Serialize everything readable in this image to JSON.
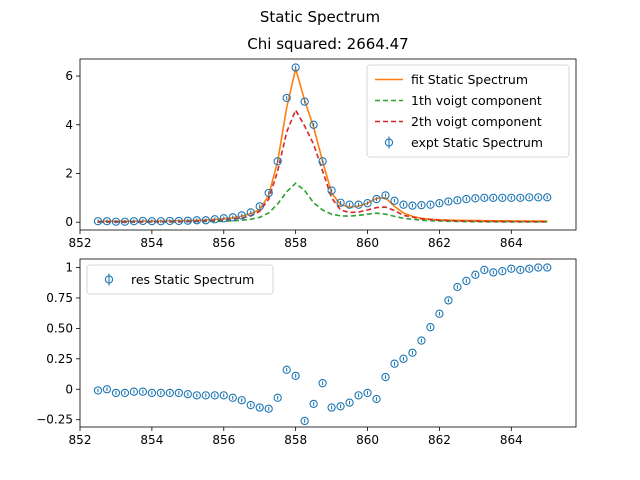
{
  "figure_title": "Static Spectrum",
  "chart_data": [
    {
      "type": "line",
      "title": "Chi squared:  2664.47",
      "xlabel": "",
      "ylabel": "",
      "xlim": [
        852.0,
        865.8
      ],
      "ylim": [
        -0.32,
        6.7
      ],
      "xticks": [
        852,
        854,
        856,
        858,
        860,
        862,
        864
      ],
      "yticks": [
        0,
        2,
        4,
        6
      ],
      "legend_position": "top-right",
      "grid": false,
      "series": [
        {
          "name": "fit Static Spectrum",
          "kind": "line",
          "color": "#ff7f0e",
          "dash": "",
          "points": [
            [
              852.5,
              0.04
            ],
            [
              852.75,
              0.04
            ],
            [
              853.0,
              0.04
            ],
            [
              853.25,
              0.04
            ],
            [
              853.5,
              0.04
            ],
            [
              853.75,
              0.05
            ],
            [
              854.0,
              0.05
            ],
            [
              854.25,
              0.05
            ],
            [
              854.5,
              0.06
            ],
            [
              854.75,
              0.06
            ],
            [
              855.0,
              0.07
            ],
            [
              855.25,
              0.08
            ],
            [
              855.5,
              0.1
            ],
            [
              855.75,
              0.12
            ],
            [
              856.0,
              0.15
            ],
            [
              856.25,
              0.18
            ],
            [
              856.5,
              0.25
            ],
            [
              856.75,
              0.35
            ],
            [
              857.0,
              0.52
            ],
            [
              857.25,
              1.1
            ],
            [
              857.5,
              2.5
            ],
            [
              857.75,
              4.7
            ],
            [
              858.0,
              6.3
            ],
            [
              858.25,
              5.0
            ],
            [
              858.5,
              3.9
            ],
            [
              858.75,
              2.5
            ],
            [
              859.0,
              1.2
            ],
            [
              859.25,
              0.72
            ],
            [
              859.5,
              0.62
            ],
            [
              859.75,
              0.66
            ],
            [
              860.0,
              0.78
            ],
            [
              860.25,
              0.98
            ],
            [
              860.5,
              1.0
            ],
            [
              860.75,
              0.65
            ],
            [
              861.0,
              0.38
            ],
            [
              861.25,
              0.24
            ],
            [
              861.5,
              0.16
            ],
            [
              861.75,
              0.12
            ],
            [
              862.0,
              0.1
            ],
            [
              862.5,
              0.08
            ],
            [
              863.0,
              0.07
            ],
            [
              863.5,
              0.06
            ],
            [
              864.0,
              0.05
            ],
            [
              864.5,
              0.05
            ],
            [
              865.0,
              0.05
            ]
          ]
        },
        {
          "name": "1th voigt component",
          "kind": "line",
          "color": "#2ca02c",
          "dash": "5,3",
          "points": [
            [
              852.5,
              0.01
            ],
            [
              853.0,
              0.01
            ],
            [
              853.5,
              0.01
            ],
            [
              854.0,
              0.01
            ],
            [
              854.5,
              0.01
            ],
            [
              855.0,
              0.02
            ],
            [
              855.5,
              0.03
            ],
            [
              856.0,
              0.04
            ],
            [
              856.5,
              0.08
            ],
            [
              856.75,
              0.12
            ],
            [
              857.0,
              0.2
            ],
            [
              857.25,
              0.38
            ],
            [
              857.5,
              0.75
            ],
            [
              857.75,
              1.25
            ],
            [
              858.0,
              1.6
            ],
            [
              858.25,
              1.3
            ],
            [
              858.5,
              0.8
            ],
            [
              858.75,
              0.5
            ],
            [
              859.0,
              0.33
            ],
            [
              859.25,
              0.26
            ],
            [
              859.5,
              0.25
            ],
            [
              859.75,
              0.28
            ],
            [
              860.0,
              0.33
            ],
            [
              860.25,
              0.37
            ],
            [
              860.5,
              0.33
            ],
            [
              860.75,
              0.24
            ],
            [
              861.0,
              0.16
            ],
            [
              861.5,
              0.08
            ],
            [
              862.0,
              0.05
            ],
            [
              862.5,
              0.03
            ],
            [
              863.0,
              0.02
            ],
            [
              864.0,
              0.01
            ],
            [
              865.0,
              0.01
            ]
          ]
        },
        {
          "name": "2th voigt component",
          "kind": "line",
          "color": "#d62728",
          "dash": "5,3",
          "points": [
            [
              852.5,
              0.01
            ],
            [
              853.0,
              0.01
            ],
            [
              853.5,
              0.01
            ],
            [
              854.0,
              0.02
            ],
            [
              854.5,
              0.02
            ],
            [
              855.0,
              0.03
            ],
            [
              855.5,
              0.05
            ],
            [
              856.0,
              0.09
            ],
            [
              856.5,
              0.17
            ],
            [
              856.75,
              0.26
            ],
            [
              857.0,
              0.45
            ],
            [
              857.25,
              0.95
            ],
            [
              857.5,
              2.1
            ],
            [
              857.75,
              3.7
            ],
            [
              858.0,
              4.6
            ],
            [
              858.25,
              3.95
            ],
            [
              858.5,
              3.2
            ],
            [
              858.75,
              2.1
            ],
            [
              859.0,
              1.0
            ],
            [
              859.25,
              0.5
            ],
            [
              859.5,
              0.4
            ],
            [
              859.75,
              0.42
            ],
            [
              860.0,
              0.5
            ],
            [
              860.25,
              0.6
            ],
            [
              860.5,
              0.62
            ],
            [
              860.75,
              0.48
            ],
            [
              861.0,
              0.28
            ],
            [
              861.5,
              0.14
            ],
            [
              862.0,
              0.08
            ],
            [
              862.5,
              0.05
            ],
            [
              863.0,
              0.04
            ],
            [
              863.5,
              0.03
            ],
            [
              864.0,
              0.03
            ],
            [
              865.0,
              0.02
            ]
          ]
        },
        {
          "name": "expt Static Spectrum",
          "kind": "errorbar",
          "color": "#1f77b4",
          "dash": "",
          "points": [
            [
              852.5,
              0.04
            ],
            [
              852.75,
              0.04
            ],
            [
              853.0,
              0.02
            ],
            [
              853.25,
              0.02
            ],
            [
              853.5,
              0.04
            ],
            [
              853.75,
              0.05
            ],
            [
              854.0,
              0.04
            ],
            [
              854.25,
              0.04
            ],
            [
              854.5,
              0.05
            ],
            [
              854.75,
              0.05
            ],
            [
              855.0,
              0.06
            ],
            [
              855.25,
              0.08
            ],
            [
              855.5,
              0.08
            ],
            [
              855.75,
              0.12
            ],
            [
              856.0,
              0.16
            ],
            [
              856.25,
              0.2
            ],
            [
              856.5,
              0.28
            ],
            [
              856.75,
              0.4
            ],
            [
              857.0,
              0.65
            ],
            [
              857.25,
              1.2
            ],
            [
              857.5,
              2.5
            ],
            [
              857.75,
              5.1
            ],
            [
              858.0,
              6.35
            ],
            [
              858.25,
              4.95
            ],
            [
              858.5,
              4.0
            ],
            [
              858.75,
              2.5
            ],
            [
              859.0,
              1.3
            ],
            [
              859.25,
              0.8
            ],
            [
              859.5,
              0.72
            ],
            [
              859.75,
              0.72
            ],
            [
              860.0,
              0.78
            ],
            [
              860.25,
              0.95
            ],
            [
              860.5,
              1.1
            ],
            [
              860.75,
              0.88
            ],
            [
              861.0,
              0.72
            ],
            [
              861.25,
              0.68
            ],
            [
              861.5,
              0.7
            ],
            [
              861.75,
              0.72
            ],
            [
              862.0,
              0.78
            ],
            [
              862.25,
              0.85
            ],
            [
              862.5,
              0.9
            ],
            [
              862.75,
              0.95
            ],
            [
              863.0,
              0.98
            ],
            [
              863.25,
              1.0
            ],
            [
              863.5,
              1.0
            ],
            [
              863.75,
              1.0
            ],
            [
              864.0,
              1.0
            ],
            [
              864.25,
              1.0
            ],
            [
              864.5,
              1.02
            ],
            [
              864.75,
              1.02
            ],
            [
              865.0,
              1.02
            ]
          ]
        }
      ]
    },
    {
      "type": "scatter",
      "title": "",
      "xlabel": "",
      "ylabel": "",
      "xlim": [
        852.0,
        865.8
      ],
      "ylim": [
        -0.31,
        1.07
      ],
      "xticks": [
        852,
        854,
        856,
        858,
        860,
        862,
        864
      ],
      "yticks": [
        -0.25,
        0.0,
        0.25,
        0.5,
        0.75,
        1.0
      ],
      "legend_position": "top-left",
      "grid": false,
      "series": [
        {
          "name": "res Static Spectrum",
          "kind": "errorbar",
          "color": "#1f77b4",
          "dash": "",
          "points": [
            [
              852.5,
              -0.01
            ],
            [
              852.75,
              0.0
            ],
            [
              853.0,
              -0.03
            ],
            [
              853.25,
              -0.03
            ],
            [
              853.5,
              -0.02
            ],
            [
              853.75,
              -0.02
            ],
            [
              854.0,
              -0.03
            ],
            [
              854.25,
              -0.03
            ],
            [
              854.5,
              -0.03
            ],
            [
              854.75,
              -0.03
            ],
            [
              855.0,
              -0.04
            ],
            [
              855.25,
              -0.05
            ],
            [
              855.5,
              -0.05
            ],
            [
              855.75,
              -0.05
            ],
            [
              856.0,
              -0.05
            ],
            [
              856.25,
              -0.07
            ],
            [
              856.5,
              -0.09
            ],
            [
              856.75,
              -0.13
            ],
            [
              857.0,
              -0.15
            ],
            [
              857.25,
              -0.16
            ],
            [
              857.5,
              -0.07
            ],
            [
              857.75,
              0.16
            ],
            [
              858.0,
              0.11
            ],
            [
              858.25,
              -0.26
            ],
            [
              858.5,
              -0.12
            ],
            [
              858.75,
              0.05
            ],
            [
              859.0,
              -0.15
            ],
            [
              859.25,
              -0.14
            ],
            [
              859.5,
              -0.11
            ],
            [
              859.75,
              -0.05
            ],
            [
              860.0,
              -0.03
            ],
            [
              860.25,
              -0.08
            ],
            [
              860.5,
              0.1
            ],
            [
              860.75,
              0.21
            ],
            [
              861.0,
              0.25
            ],
            [
              861.25,
              0.3
            ],
            [
              861.5,
              0.4
            ],
            [
              861.75,
              0.51
            ],
            [
              862.0,
              0.62
            ],
            [
              862.25,
              0.73
            ],
            [
              862.5,
              0.84
            ],
            [
              862.75,
              0.89
            ],
            [
              863.0,
              0.94
            ],
            [
              863.25,
              0.98
            ],
            [
              863.5,
              0.96
            ],
            [
              863.75,
              0.97
            ],
            [
              864.0,
              0.99
            ],
            [
              864.25,
              0.98
            ],
            [
              864.5,
              0.99
            ],
            [
              864.75,
              1.0
            ],
            [
              865.0,
              1.0
            ]
          ]
        }
      ]
    }
  ]
}
